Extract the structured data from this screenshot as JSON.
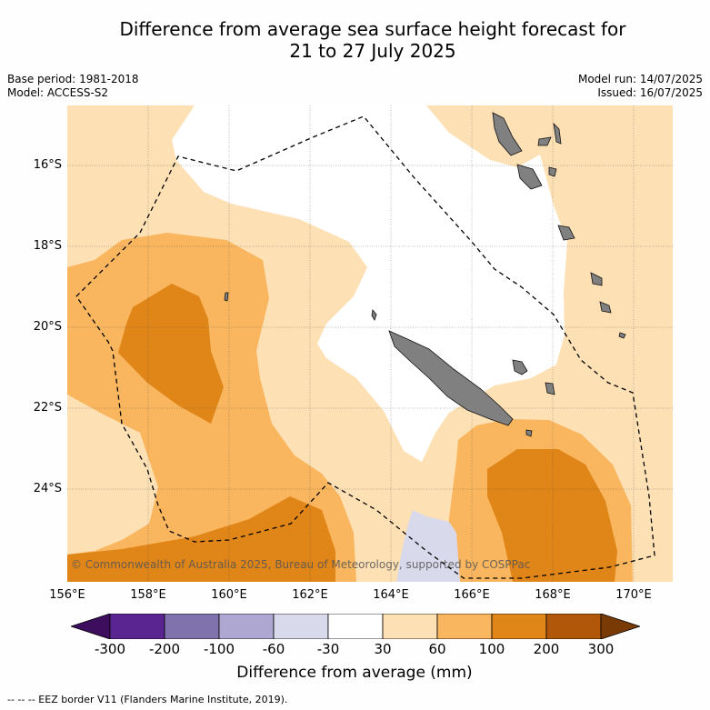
{
  "title_line1": "Difference from average sea surface height forecast for",
  "title_line2": "21 to 27 July 2025",
  "meta_left": [
    "Base period: 1981-2018",
    "Model: ACCESS-S2"
  ],
  "meta_right": [
    "Model run: 14/07/2025",
    "Issued: 16/07/2025"
  ],
  "lat_labels": [
    "16°S",
    "18°S",
    "20°S",
    "22°S",
    "24°S"
  ],
  "lon_labels": [
    "156°E",
    "158°E",
    "160°E",
    "162°E",
    "164°E",
    "166°E",
    "168°E",
    "170°E"
  ],
  "copyright": "© Commonwealth of Australia 2025, Bureau of Meteorology, supported by COSPPac",
  "colorbar": {
    "title": "Difference from average (mm)",
    "tick_labels": [
      "-300",
      "-200",
      "-100",
      "-60",
      "-30",
      "30",
      "60",
      "100",
      "200",
      "300"
    ],
    "colors": [
      "#3d0d5e",
      "#5a2590",
      "#8072ad",
      "#ada7d1",
      "#d9d9ec",
      "#ffffff",
      "#fde0b4",
      "#f9b65e",
      "#e08518",
      "#b05709",
      "#7a3a05"
    ]
  },
  "footer": "-- -- -- EEZ border V11 (Flanders Marine Institute, 2019)."
}
